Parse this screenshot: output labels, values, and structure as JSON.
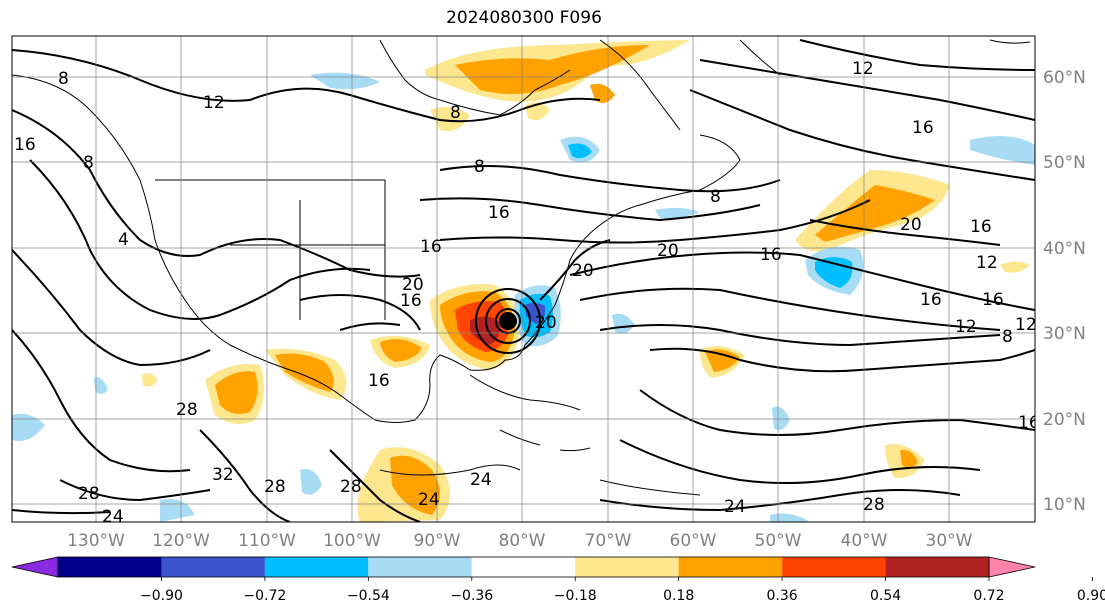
{
  "title": "2024080300 F096",
  "map": {
    "lon_labels": [
      "130°W",
      "120°W",
      "110°W",
      "100°W",
      "90°W",
      "80°W",
      "70°W",
      "60°W",
      "50°W",
      "40°W",
      "30°W"
    ],
    "lat_labels": [
      "60°N",
      "50°N",
      "40°N",
      "30°N",
      "20°N",
      "10°N"
    ],
    "contour_labels": [
      "8",
      "12",
      "16",
      "8",
      "4",
      "8",
      "12",
      "8",
      "8",
      "16",
      "20",
      "16",
      "20",
      "16",
      "20",
      "16",
      "12",
      "12",
      "16",
      "8",
      "16",
      "12",
      "20",
      "16",
      "16",
      "20",
      "24",
      "28",
      "32",
      "28",
      "24",
      "28",
      "24",
      "28",
      "28",
      "24",
      "16",
      "16"
    ],
    "storm_marker": "cyclone-center-dot"
  },
  "colorbar": {
    "ticks": [
      "−0.90",
      "−0.72",
      "−0.54",
      "−0.36",
      "−0.18",
      "0.18",
      "0.36",
      "0.54",
      "0.72",
      "0.90"
    ],
    "colors": [
      "#8a2be2",
      "#00008b",
      "#3b54cc",
      "#00bfff",
      "#a8dcf5",
      "#ffffff",
      "#fce68e",
      "#ffa200",
      "#ff4500",
      "#b22222",
      "#ff82ab"
    ]
  }
}
